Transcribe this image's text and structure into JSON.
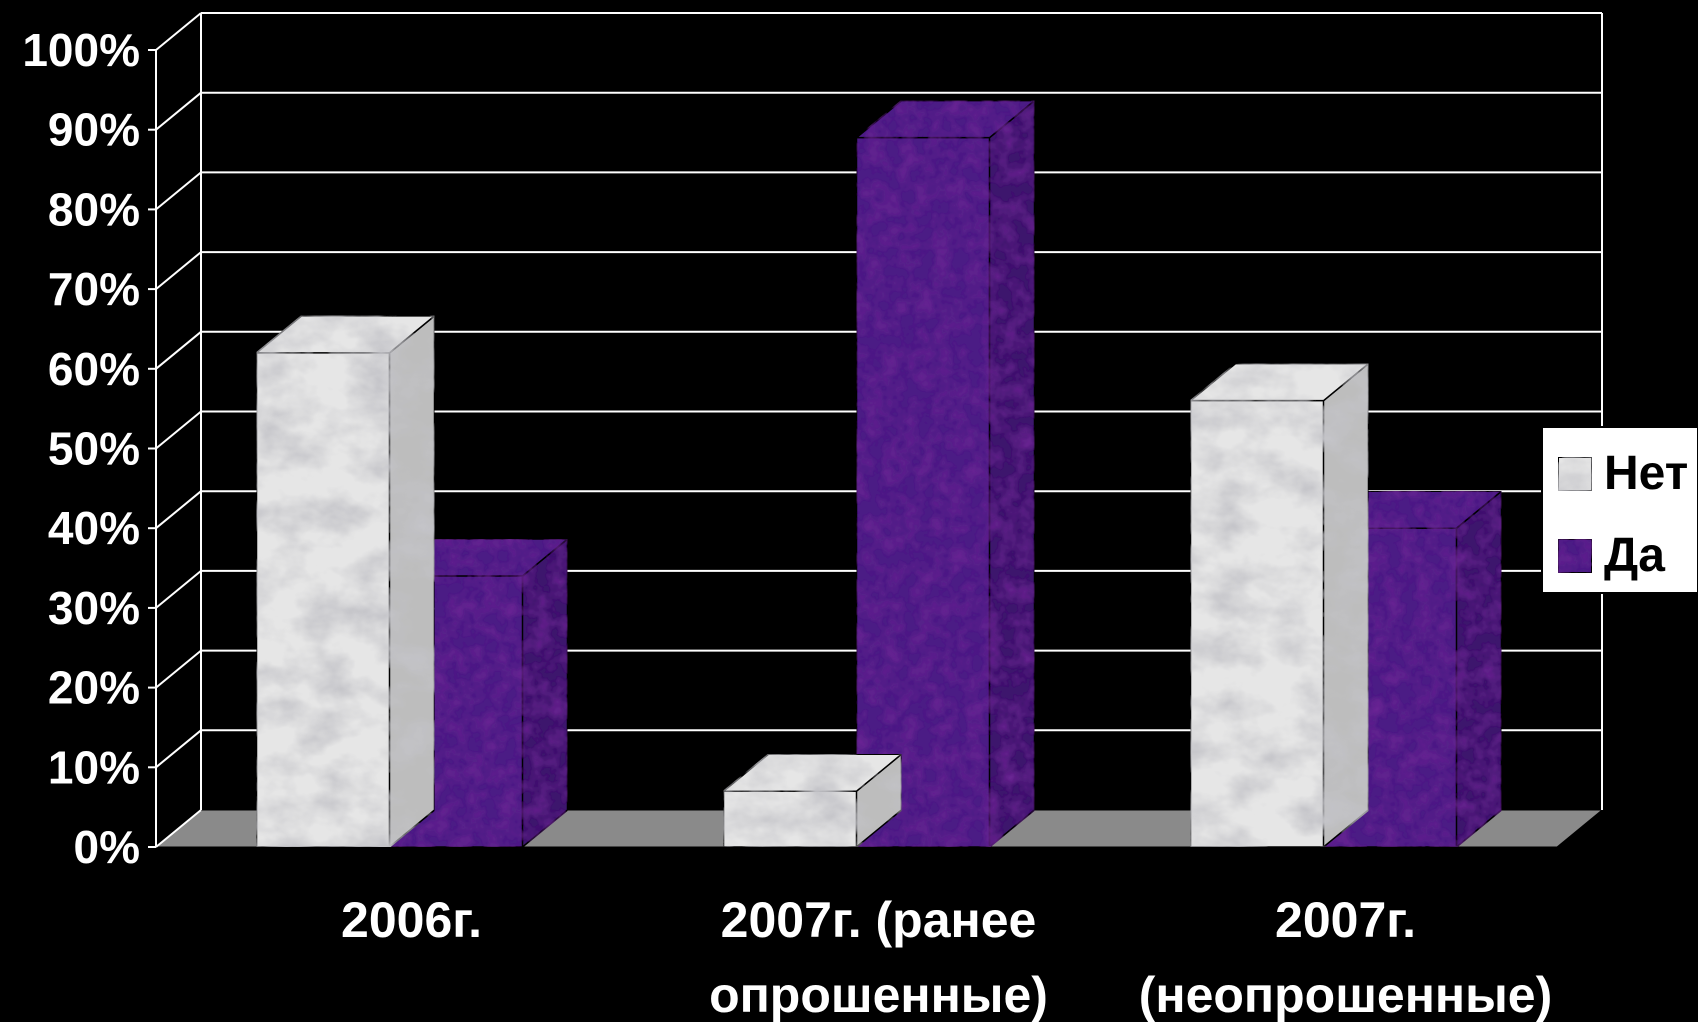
{
  "chart_data": {
    "type": "bar",
    "style": "3d-clustered-column",
    "categories": [
      [
        "2006г."
      ],
      [
        "2007г. (ранее",
        "опрошенные)"
      ],
      [
        "2007г.",
        "(неопрошенные)"
      ]
    ],
    "series": [
      {
        "name": "Нет",
        "values": [
          62,
          7,
          56
        ],
        "color": "#e6e6e6",
        "texture": "white-marble"
      },
      {
        "name": "Да",
        "values": [
          34,
          89,
          40
        ],
        "color": "#4b1a85",
        "texture": "purple"
      }
    ],
    "yticks": [
      "0%",
      "10%",
      "20%",
      "30%",
      "40%",
      "50%",
      "60%",
      "70%",
      "80%",
      "90%",
      "100%"
    ],
    "ylim": [
      0,
      100
    ],
    "grid": true,
    "legend_position": "right",
    "background": "#000000",
    "floor_color": "#8a8a8a"
  }
}
